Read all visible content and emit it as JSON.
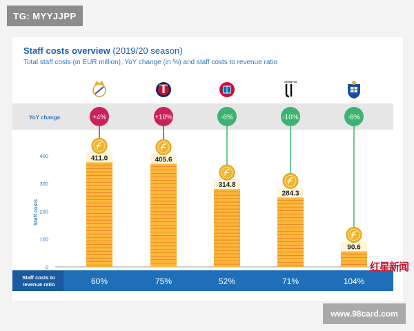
{
  "watermark_top": "TG: MYYJJPP",
  "watermark_bottom": "www.98card.com",
  "stamp": "红星新闻",
  "chart_data": {
    "type": "bar",
    "title": "Staff costs overview",
    "title_season": "(2019/20 season)",
    "subtitle": "Total staff costs (in EUR million), YoY change (in %) and staff costs to revenue ratio",
    "ylabel": "Staff costs",
    "ylim": [
      0,
      450
    ],
    "yticks": [
      0,
      100,
      200,
      300,
      400
    ],
    "categories": [
      "Real Madrid",
      "Paris Saint-Germain",
      "FC Bayern München",
      "Juventus",
      "FC Porto"
    ],
    "series": [
      {
        "values": [
          411.0,
          405.6,
          314.8,
          284.3,
          90.6
        ]
      }
    ],
    "value_labels": [
      "411.0",
      "405.6",
      "314.8",
      "284.3",
      "90.6"
    ],
    "yoy_label": "YoY change",
    "yoy_change": [
      "+4%",
      "+10%",
      "-6%",
      "-10%",
      "-8%"
    ],
    "ratio_label": "Staff costs to revenue ratio",
    "ratio_label_lines": [
      "Staff costs to",
      "revenue ratio"
    ],
    "ratio": [
      "60%",
      "75%",
      "52%",
      "71%",
      "104%"
    ],
    "logo_text": [
      "",
      "PARIS",
      "",
      "JUVENTUS",
      ""
    ],
    "colors": {
      "bar": "#fbb83a",
      "bar_stripe": "#ef8a2b",
      "coin": "#f3b32a",
      "increase": "#c9215a",
      "decrease": "#3cb371",
      "ratio_band": "#1e6fb8",
      "ratio_label_bg": "#1a5aa0",
      "yoy_band": "#e6e6e6",
      "axis_text": "#2f78bd"
    }
  }
}
